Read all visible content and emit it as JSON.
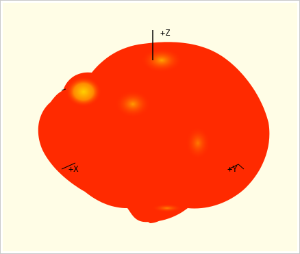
{
  "viewer": {
    "axes": {
      "z_label": "+Z",
      "x_label": "+X",
      "y_label": "+Y"
    }
  },
  "colors": {
    "background": "#fffde6",
    "surface_main": "#ff2a00",
    "surface_highlight": "#ff8a00",
    "surface_hot": "#ffd000",
    "axis_line": "#000000"
  }
}
